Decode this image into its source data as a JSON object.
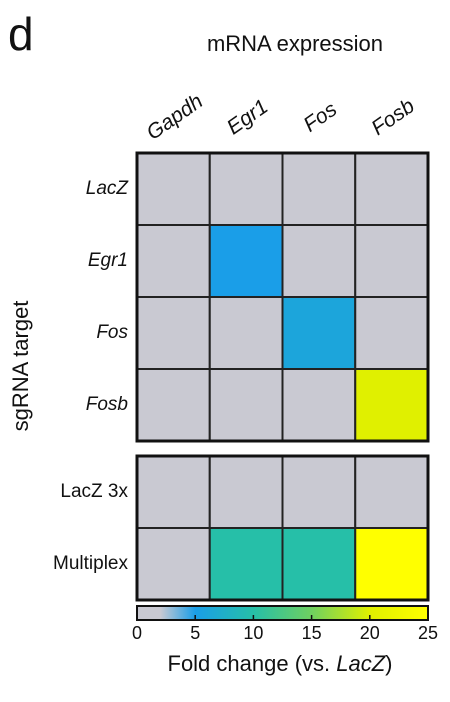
{
  "chart_data": {
    "type": "heatmap",
    "panel_label": "d",
    "title": "mRNA expression",
    "y_label": "sgRNA target",
    "columns": [
      "Gapdh",
      "Egr1",
      "Fos",
      "Fosb"
    ],
    "panels": [
      {
        "rows": [
          "LacZ",
          "Egr1",
          "Fos",
          "Fosb"
        ],
        "values": [
          [
            1,
            1,
            1,
            1
          ],
          [
            1,
            5,
            1,
            1
          ],
          [
            1,
            1,
            6,
            1
          ],
          [
            1,
            1,
            1,
            20
          ]
        ]
      },
      {
        "rows": [
          "LacZ 3x",
          "Multiplex"
        ],
        "values": [
          [
            1,
            1,
            1,
            1
          ],
          [
            1,
            10,
            10,
            25
          ]
        ]
      }
    ],
    "colorbar_label": [
      "Fold change (vs. ",
      "LacZ",
      ")"
    ],
    "xlim": [
      0,
      25
    ],
    "xticks": [
      0,
      5,
      10,
      15,
      20,
      25
    ],
    "colorscale": [
      [
        0,
        "#c9c9d2"
      ],
      [
        2,
        "#c9c9d2"
      ],
      [
        5,
        "#1a9ee8"
      ],
      [
        10,
        "#26bfa8"
      ],
      [
        15,
        "#6fd060"
      ],
      [
        20,
        "#e0f000"
      ],
      [
        25,
        "#ffff00"
      ]
    ]
  }
}
